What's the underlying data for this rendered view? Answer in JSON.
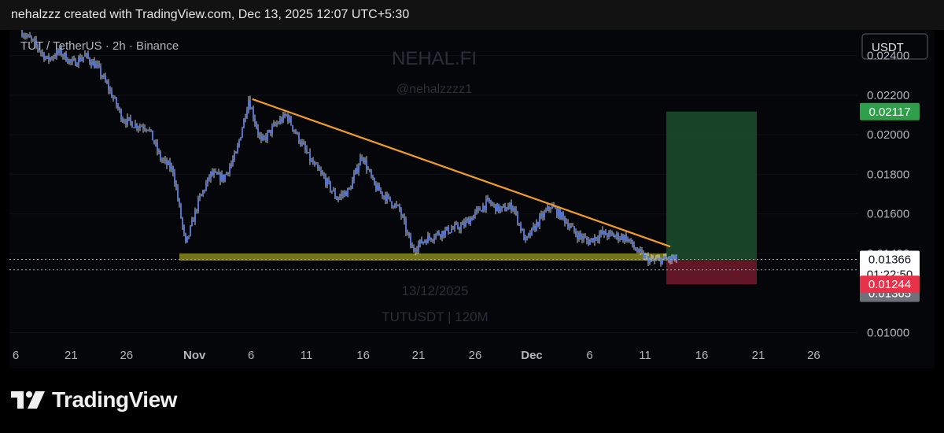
{
  "credit": "nehalzzz created with TradingView.com, Dec 13, 2025 12:07 UTC+5:30",
  "symbol_line": "TUT / TetherUS · 2h · Binance",
  "watermark": {
    "brand": "NEHAL.FI",
    "handle": "@nehalzzzz1",
    "date": "13/12/2025",
    "pair": "TUTUSDT | 120M"
  },
  "currency_button": "USDT",
  "brand_name": "TradingView",
  "price_badges": {
    "target": "0.02117",
    "last": "0.01366",
    "countdown": "01:22:50",
    "close": "0.01365",
    "stop": "0.01244"
  },
  "colors": {
    "background": "#05060a",
    "candle": "#5b7fe6",
    "candle_wick": "#ffffff",
    "trendline": "#f39c24",
    "support_zone": "#8a8a22",
    "target_zone": "#1c4a2c",
    "stop_zone": "#6b1a28",
    "target_badge": "#2e9e4a",
    "stop_badge": "#e8324a",
    "close_badge": "#6f7178"
  },
  "chart_data": {
    "type": "candlestick",
    "title": "TUT / TetherUS · 2h · Binance",
    "y_ticks": [
      "0.02400",
      "0.02200",
      "0.02000",
      "0.01800",
      "0.01600",
      "0.01400",
      "0.01000"
    ],
    "y_range": [
      0.0097,
      0.0253
    ],
    "x_ticks": [
      "6",
      "21",
      "26",
      "Nov",
      "6",
      "11",
      "16",
      "21",
      "26",
      "Dec",
      "6",
      "11",
      "16",
      "21",
      "26"
    ],
    "price_path": [
      [
        0,
        0.0252
      ],
      [
        1,
        0.0246
      ],
      [
        2,
        0.0238
      ],
      [
        3,
        0.0242
      ],
      [
        4,
        0.0236
      ],
      [
        5,
        0.024
      ],
      [
        6,
        0.0234
      ],
      [
        7,
        0.0222
      ],
      [
        8,
        0.0208
      ],
      [
        9,
        0.0205
      ],
      [
        10,
        0.0204
      ],
      [
        11,
        0.0188
      ],
      [
        12,
        0.0182
      ],
      [
        13,
        0.0144
      ],
      [
        14,
        0.0166
      ],
      [
        15,
        0.018
      ],
      [
        16,
        0.0178
      ],
      [
        17,
        0.019
      ],
      [
        18,
        0.0218
      ],
      [
        19,
        0.0196
      ],
      [
        20,
        0.0204
      ],
      [
        21,
        0.021
      ],
      [
        22,
        0.0198
      ],
      [
        23,
        0.0186
      ],
      [
        24,
        0.0178
      ],
      [
        25,
        0.0168
      ],
      [
        26,
        0.0172
      ],
      [
        27,
        0.019
      ],
      [
        28,
        0.0174
      ],
      [
        29,
        0.0168
      ],
      [
        30,
        0.0162
      ],
      [
        31,
        0.0142
      ],
      [
        32,
        0.0147
      ],
      [
        33,
        0.015
      ],
      [
        34,
        0.0152
      ],
      [
        35,
        0.0154
      ],
      [
        36,
        0.016
      ],
      [
        37,
        0.0166
      ],
      [
        38,
        0.0162
      ],
      [
        39,
        0.0164
      ],
      [
        40,
        0.0146
      ],
      [
        41,
        0.0156
      ],
      [
        42,
        0.0164
      ],
      [
        43,
        0.0158
      ],
      [
        44,
        0.015
      ],
      [
        45,
        0.0146
      ],
      [
        46,
        0.015
      ],
      [
        47,
        0.0149
      ],
      [
        48,
        0.0148
      ],
      [
        49,
        0.014
      ],
      [
        50,
        0.0136
      ],
      [
        51,
        0.0137
      ],
      [
        52,
        0.0137
      ]
    ],
    "support_zone": [
      0.01364,
      0.014
    ],
    "trendline": [
      [
        0.0218,
        18.3
      ],
      [
        0.01435,
        51.5
      ]
    ],
    "position": {
      "entry": 0.01366,
      "target": 0.02117,
      "stop": 0.01244
    }
  }
}
